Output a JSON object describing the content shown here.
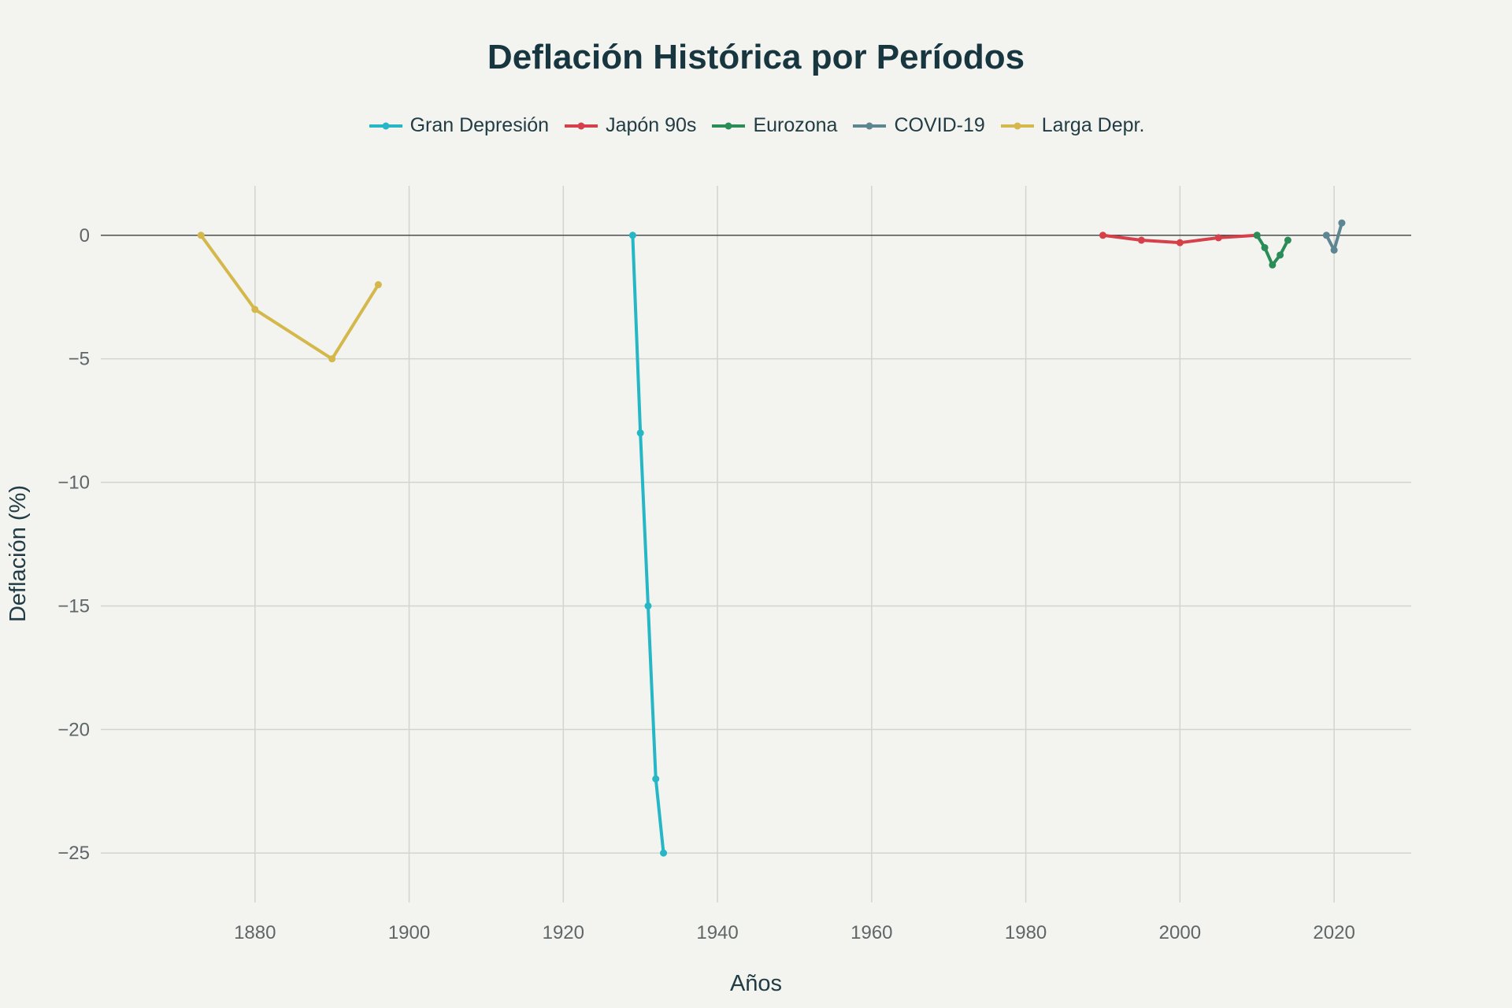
{
  "chart_data": {
    "type": "line",
    "title": "Deflación Histórica por Períodos",
    "xlabel": "Años",
    "ylabel": "Deflación (%)",
    "xlim": [
      1860,
      2030
    ],
    "ylim": [
      -27,
      2
    ],
    "x_ticks": [
      1880,
      1900,
      1920,
      1940,
      1960,
      1980,
      2000,
      2020
    ],
    "y_ticks": [
      0,
      -5,
      -10,
      -15,
      -20,
      -25
    ],
    "y_tick_labels": [
      "0",
      "−5",
      "−10",
      "−15",
      "−20",
      "−25"
    ],
    "grid": true,
    "legend_position": "top-center",
    "series": [
      {
        "name": "Gran Depresión",
        "color": "#25b7c6",
        "x": [
          1929,
          1930,
          1931,
          1932,
          1933
        ],
        "y": [
          0,
          -8,
          -15,
          -22,
          -25
        ]
      },
      {
        "name": "Japón 90s",
        "color": "#d5404a",
        "x": [
          1990,
          1995,
          2000,
          2005,
          2010
        ],
        "y": [
          0,
          -0.2,
          -0.3,
          -0.1,
          0
        ]
      },
      {
        "name": "Eurozona",
        "color": "#2a8c57",
        "x": [
          2010,
          2011,
          2012,
          2013,
          2014
        ],
        "y": [
          0,
          -0.5,
          -1.2,
          -0.8,
          -0.2
        ]
      },
      {
        "name": "COVID-19",
        "color": "#5e8592",
        "x": [
          2019,
          2020,
          2021
        ],
        "y": [
          0,
          -0.6,
          0.5
        ]
      },
      {
        "name": "Larga Depr.",
        "color": "#d4b84c",
        "x": [
          1873,
          1880,
          1890,
          1896
        ],
        "y": [
          0,
          -3,
          -5,
          -2
        ]
      }
    ]
  }
}
